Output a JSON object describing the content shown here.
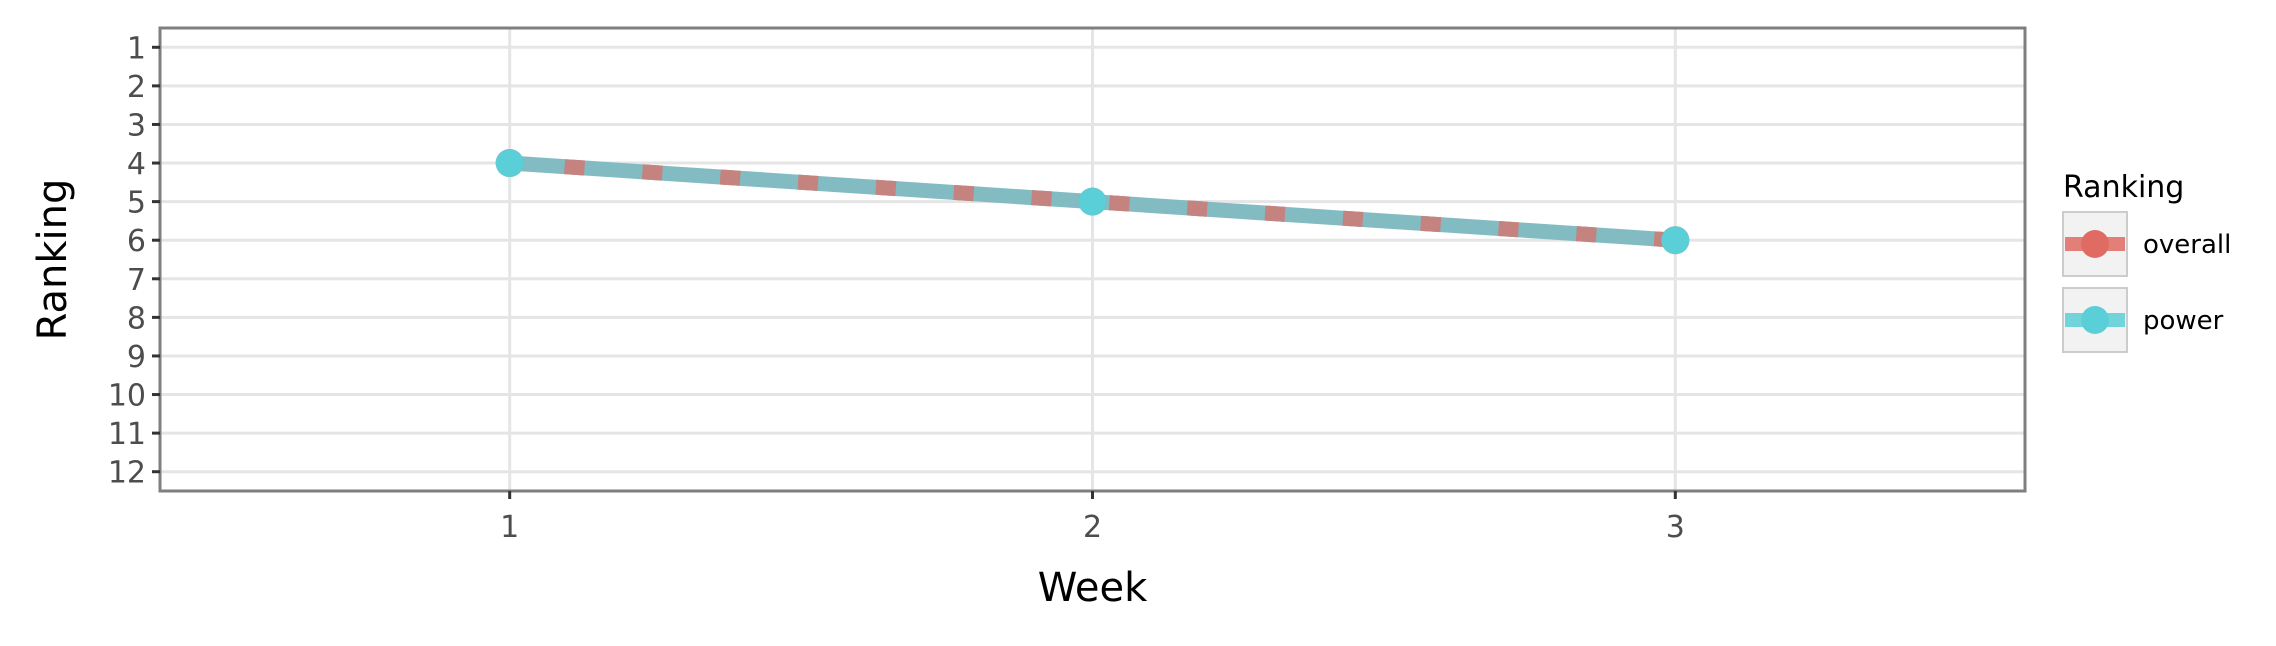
{
  "chart_data": {
    "type": "line",
    "x": [
      1,
      2,
      3
    ],
    "xlabel": "Week",
    "ylabel": "Ranking",
    "xlim": [
      0.4,
      3.6
    ],
    "ylim": [
      12.5,
      0.5
    ],
    "y_reversed": true,
    "x_ticks": [
      "1",
      "2",
      "3"
    ],
    "y_ticks": [
      "1",
      "2",
      "3",
      "4",
      "5",
      "6",
      "7",
      "8",
      "9",
      "10",
      "11",
      "12"
    ],
    "grid": true,
    "legend": {
      "title": "Ranking",
      "position": "right",
      "entries": [
        "overall",
        "power"
      ]
    },
    "series": [
      {
        "name": "overall",
        "values": [
          4,
          5,
          6
        ],
        "color": "#e06b63",
        "line_style": "dashed"
      },
      {
        "name": "power",
        "values": [
          4,
          5,
          6
        ],
        "color": "#5bcfd8",
        "line_style": "solid"
      }
    ]
  },
  "colors": {
    "panel_background": "#ffffff",
    "grid": "#e5e5e5",
    "panel_border": "#7f7f7f",
    "combined_line": "#82bcc2",
    "legend_key_background": "#f2f2f2"
  }
}
